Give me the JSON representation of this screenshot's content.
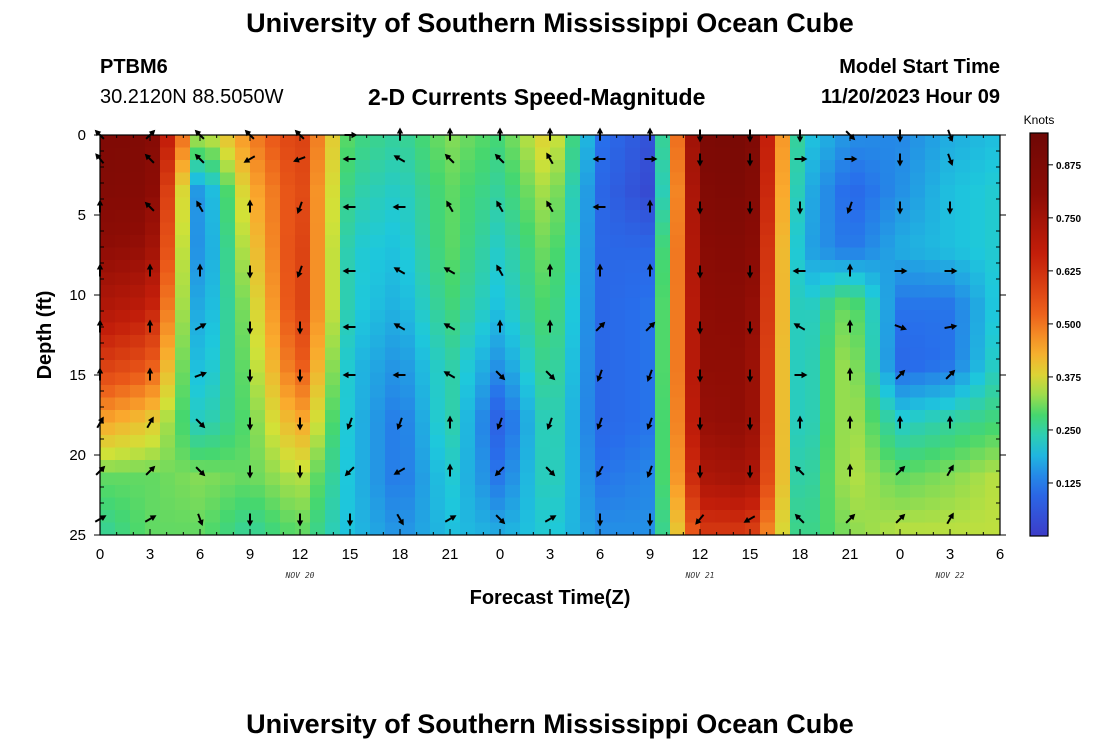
{
  "header": {
    "title": "University of Southern Mississippi Ocean Cube",
    "station": "PTBM6",
    "coords": "30.2120N  88.5050W",
    "subtitle": "2-D Currents Speed-Magnitude",
    "model_start_label": "Model Start Time",
    "model_start_value": "11/20/2023 Hour 09"
  },
  "footer": {
    "title": "University of Southern Mississippi Ocean Cube"
  },
  "chart_data": {
    "type": "heatmap",
    "xlabel": "Forecast Time(Z)",
    "ylabel": "Depth (ft)",
    "x_tick_labels": [
      "0",
      "3",
      "6",
      "9",
      "12",
      "15",
      "18",
      "21",
      "0",
      "3",
      "6",
      "9",
      "12",
      "15",
      "18",
      "21",
      "0",
      "3",
      "6"
    ],
    "x_range_hours": [
      0,
      54
    ],
    "date_labels": [
      {
        "text": "NOV 20",
        "hour": 12
      },
      {
        "text": "NOV 21",
        "hour": 36
      },
      {
        "text": "NOV 22",
        "hour": 51
      }
    ],
    "y_ticks": [
      0,
      5,
      10,
      15,
      20,
      25
    ],
    "ylim": [
      0,
      25
    ],
    "colorbar": {
      "title": "Knots",
      "range": [
        0,
        0.95
      ],
      "tick_values": [
        0.875,
        0.75,
        0.625,
        0.5,
        0.375,
        0.25,
        0.125
      ],
      "tick_labels": [
        "0.875",
        "0.750",
        "0.625",
        "0.500",
        "0.375",
        "0.250",
        "0.125"
      ]
    },
    "speed_field_columns": [
      {
        "hour": 0,
        "speeds": [
          0.87,
          0.85,
          0.8,
          0.72,
          0.6,
          0.45,
          0.3,
          0.25
        ]
      },
      {
        "hour": 3,
        "speeds": [
          0.86,
          0.84,
          0.78,
          0.68,
          0.55,
          0.4,
          0.3,
          0.3
        ]
      },
      {
        "hour": 6,
        "speeds": [
          0.32,
          0.12,
          0.12,
          0.15,
          0.18,
          0.22,
          0.32,
          0.3
        ]
      },
      {
        "hour": 9,
        "speeds": [
          0.48,
          0.42,
          0.38,
          0.34,
          0.32,
          0.3,
          0.3,
          0.25
        ]
      },
      {
        "hour": 12,
        "speeds": [
          0.6,
          0.58,
          0.6,
          0.6,
          0.55,
          0.45,
          0.35,
          0.3
        ]
      },
      {
        "hour": 15,
        "speeds": [
          0.28,
          0.25,
          0.22,
          0.22,
          0.2,
          0.2,
          0.2,
          0.2
        ]
      },
      {
        "hour": 18,
        "speeds": [
          0.25,
          0.22,
          0.2,
          0.18,
          0.15,
          0.12,
          0.12,
          0.15
        ]
      },
      {
        "hour": 21,
        "speeds": [
          0.32,
          0.3,
          0.3,
          0.28,
          0.25,
          0.25,
          0.22,
          0.2
        ]
      },
      {
        "hour": 24,
        "speeds": [
          0.28,
          0.25,
          0.22,
          0.2,
          0.15,
          0.08,
          0.12,
          0.18
        ]
      },
      {
        "hour": 27,
        "speeds": [
          0.4,
          0.35,
          0.32,
          0.3,
          0.28,
          0.26,
          0.25,
          0.22
        ]
      },
      {
        "hour": 30,
        "speeds": [
          0.12,
          0.1,
          0.1,
          0.1,
          0.1,
          0.1,
          0.12,
          0.15
        ]
      },
      {
        "hour": 33,
        "speeds": [
          0.05,
          0.03,
          0.1,
          0.12,
          0.12,
          0.12,
          0.14,
          0.15
        ]
      },
      {
        "hour": 36,
        "speeds": [
          0.88,
          0.85,
          0.82,
          0.8,
          0.8,
          0.78,
          0.72,
          0.6
        ]
      },
      {
        "hour": 39,
        "speeds": [
          0.9,
          0.88,
          0.85,
          0.82,
          0.8,
          0.8,
          0.75,
          0.6
        ]
      },
      {
        "hour": 42,
        "speeds": [
          0.22,
          0.2,
          0.18,
          0.2,
          0.2,
          0.2,
          0.22,
          0.25
        ]
      },
      {
        "hour": 45,
        "speeds": [
          0.15,
          0.1,
          0.12,
          0.32,
          0.35,
          0.35,
          0.35,
          0.32
        ]
      },
      {
        "hour": 48,
        "speeds": [
          0.14,
          0.15,
          0.18,
          0.12,
          0.1,
          0.22,
          0.3,
          0.35
        ]
      },
      {
        "hour": 51,
        "speeds": [
          0.18,
          0.2,
          0.2,
          0.12,
          0.12,
          0.25,
          0.32,
          0.35
        ]
      },
      {
        "hour": 54,
        "speeds": [
          0.2,
          0.22,
          0.22,
          0.22,
          0.24,
          0.28,
          0.35,
          0.35
        ]
      }
    ],
    "vectors": {
      "hours": [
        0,
        3,
        6,
        9,
        12,
        15,
        18,
        21,
        24,
        27,
        30,
        33,
        36,
        39,
        42,
        45,
        48,
        51
      ],
      "depths_ft": [
        0,
        1.5,
        4.5,
        8.5,
        12,
        15,
        18,
        21,
        24
      ],
      "directions_deg": [
        [
          315,
          45,
          315,
          315,
          315,
          90,
          0,
          0,
          0,
          0,
          0,
          0,
          180,
          180,
          180,
          135,
          180,
          160
        ],
        [
          320,
          315,
          315,
          240,
          250,
          270,
          300,
          315,
          315,
          330,
          270,
          90,
          180,
          180,
          90,
          90,
          180,
          160
        ],
        [
          0,
          315,
          330,
          0,
          200,
          270,
          270,
          330,
          330,
          330,
          270,
          0,
          180,
          180,
          180,
          200,
          180,
          180
        ],
        [
          0,
          0,
          0,
          180,
          200,
          270,
          300,
          300,
          330,
          0,
          0,
          0,
          180,
          180,
          270,
          0,
          90,
          90
        ],
        [
          0,
          0,
          60,
          180,
          180,
          270,
          300,
          300,
          0,
          0,
          45,
          45,
          180,
          180,
          300,
          0,
          110,
          80
        ],
        [
          0,
          0,
          70,
          180,
          180,
          270,
          270,
          300,
          135,
          135,
          200,
          200,
          180,
          180,
          90,
          0,
          45,
          45
        ],
        [
          30,
          30,
          135,
          180,
          180,
          200,
          200,
          0,
          200,
          200,
          200,
          200,
          180,
          180,
          0,
          0,
          0,
          0
        ],
        [
          45,
          45,
          135,
          180,
          180,
          225,
          240,
          0,
          225,
          135,
          210,
          200,
          180,
          180,
          315,
          0,
          45,
          30
        ],
        [
          60,
          60,
          160,
          180,
          180,
          180,
          150,
          60,
          135,
          60,
          180,
          180,
          220,
          240,
          315,
          45,
          45,
          30
        ]
      ]
    }
  }
}
